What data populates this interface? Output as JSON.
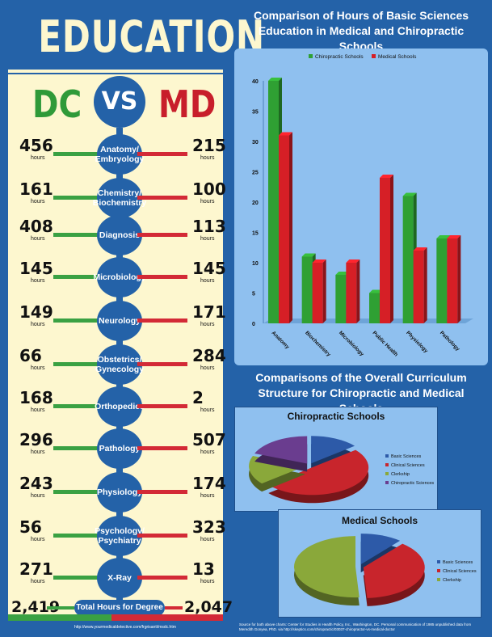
{
  "left": {
    "title": "EDUCATION",
    "dc": "DC",
    "vs": "VS",
    "md": "MD",
    "hours_label": "hours",
    "rows": [
      {
        "subject": "Anatomy/ Embryology",
        "dc": "456",
        "md": "215"
      },
      {
        "subject": "Chemistry/ Biochemistry",
        "dc": "161",
        "md": "100"
      },
      {
        "subject": "Diagnosis",
        "dc": "408",
        "md": "113"
      },
      {
        "subject": "Microbiology",
        "dc": "145",
        "md": "145"
      },
      {
        "subject": "Neurology",
        "dc": "149",
        "md": "171"
      },
      {
        "subject": "Obstetrics/ Gynecology",
        "dc": "66",
        "md": "284"
      },
      {
        "subject": "Orthopedics",
        "dc": "168",
        "md": "2"
      },
      {
        "subject": "Pathology",
        "dc": "296",
        "md": "507"
      },
      {
        "subject": "Physiology",
        "dc": "243",
        "md": "174"
      },
      {
        "subject": "Psychology/ Psychiatry",
        "dc": "56",
        "md": "323"
      },
      {
        "subject": "X-Ray",
        "dc": "271",
        "md": "13"
      }
    ],
    "total_label": "Total Hours for Degree",
    "total_dc": "2,419",
    "total_md": "2,047",
    "url": "http://www.yourmedicaldetective.com/frgrisanti/msdc.htm"
  },
  "colors": {
    "green": "#2f9a39",
    "red": "#c81e2b",
    "blue": "#2462a8",
    "cream": "#fdf7cf"
  },
  "source_note": "Source for both above charts: Center for Studies in Health Policy, Inc., Washington, DC. Personal communication of 1985 unpublished data from Meredith Gonyea, PhD. via http://skeptics.com/chiropractic/03037-chiropractor-vs-medical-doctor",
  "chart_data": [
    {
      "type": "bar",
      "title": "Comparison of Hours of Basic Sciences Education in Medical and Chiropractic Schools",
      "categories": [
        "Anatomy",
        "Biochemistry",
        "Microbiology",
        "Public Health",
        "Physiology",
        "Pathology"
      ],
      "series": [
        {
          "name": "Chiropractic Schools",
          "color": "#2fa033",
          "values": [
            40,
            11,
            8,
            5,
            21,
            14
          ]
        },
        {
          "name": "Medical Schools",
          "color": "#d61f26",
          "values": [
            31,
            10,
            10,
            24,
            12,
            14
          ]
        }
      ],
      "ylim": [
        0,
        40
      ],
      "yticks": [
        "0",
        "5",
        "10",
        "15",
        "20",
        "25",
        "30",
        "35",
        "40"
      ],
      "legend": "top",
      "grid": false
    },
    {
      "type": "pie",
      "section_title": "Comparisons of the Overall Curriculum Structure for Chiropractic and Medical Schools",
      "title": "Chiropractic Schools",
      "labels": [
        "Basic Sciences",
        "Clinical Sciences",
        "Clerkship",
        "Chiropractic Sciences"
      ],
      "colors": [
        "#2d5aa8",
        "#c8252c",
        "#8aa83a",
        "#6a3d8f"
      ],
      "values": [
        14,
        50,
        17,
        19
      ],
      "legend": "right"
    },
    {
      "type": "pie",
      "title": "Medical Schools",
      "labels": [
        "Basic Sciences",
        "Clinical Sciences",
        "Clerkship"
      ],
      "colors": [
        "#2d5aa8",
        "#c8252c",
        "#8aa83a"
      ],
      "values": [
        11,
        38,
        51
      ],
      "legend": "right"
    }
  ]
}
